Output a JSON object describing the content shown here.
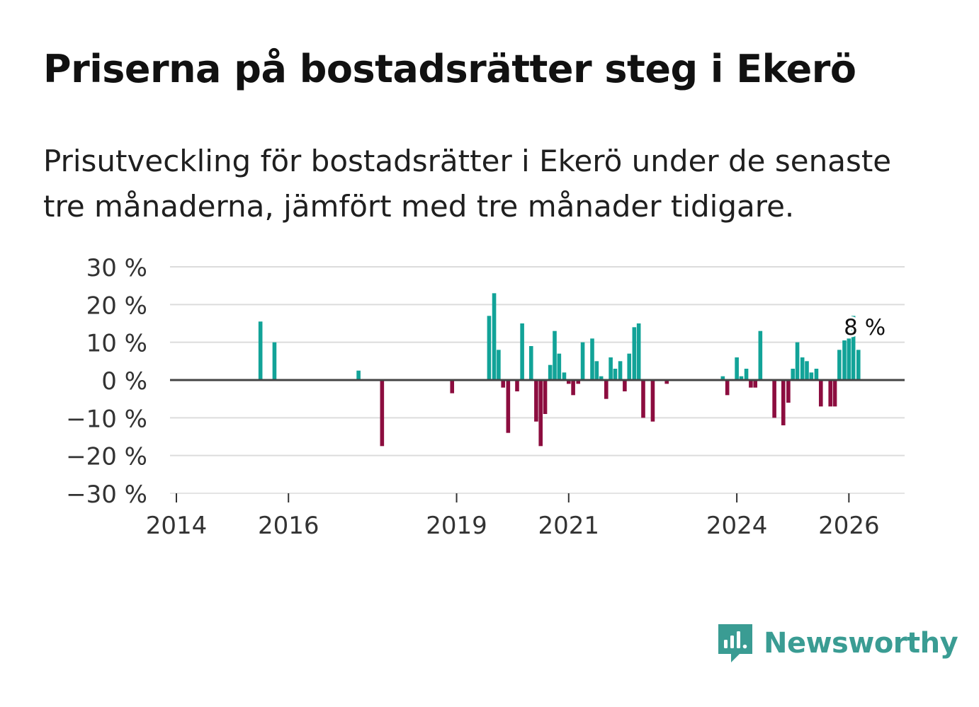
{
  "title": "Priserna på bostadsrätter steg i Ekerö",
  "subtitle": "Prisutveckling för bostadsrätter i Ekerö under de senaste tre månaderna, jämfört med tre månader tidigare.",
  "brand": {
    "name": "Newsworthy",
    "color": "#3a9c93"
  },
  "colors": {
    "positive": "#12a398",
    "negative": "#8c0d3f",
    "grid": "#dcdcdc",
    "zero": "#444444"
  },
  "chart_data": {
    "type": "bar",
    "title": "Priserna på bostadsrätter steg i Ekerö",
    "xlabel": "",
    "ylabel": "",
    "ylim": [
      -30,
      30
    ],
    "xlim": [
      2014.0,
      2026.83
    ],
    "yticks": [
      30,
      20,
      10,
      0,
      -10,
      -20,
      -30
    ],
    "ytick_labels": [
      "30 %",
      "20 %",
      "10 %",
      "0 %",
      "−10 %",
      "−20 %",
      "−30 %"
    ],
    "xticks": [
      2014,
      2016,
      2019,
      2021,
      2024,
      2026
    ],
    "xtick_labels": [
      "2014",
      "2016",
      "2019",
      "2021",
      "2024",
      "2026"
    ],
    "annotation": {
      "text": "8 %",
      "x": 2026.08,
      "y": 8
    },
    "series": [
      {
        "name": "Prisutveckling",
        "x": [
          2015.5,
          2015.75,
          2017.25,
          2017.67,
          2018.92,
          2019.58,
          2019.67,
          2019.75,
          2019.83,
          2019.92,
          2020.08,
          2020.17,
          2020.33,
          2020.42,
          2020.5,
          2020.58,
          2020.67,
          2020.75,
          2020.83,
          2020.92,
          2021.0,
          2021.08,
          2021.17,
          2021.25,
          2021.42,
          2021.5,
          2021.58,
          2021.67,
          2021.75,
          2021.83,
          2021.92,
          2022.0,
          2022.08,
          2022.17,
          2022.25,
          2022.33,
          2022.5,
          2022.75,
          2023.75,
          2023.83,
          2024.0,
          2024.08,
          2024.17,
          2024.25,
          2024.33,
          2024.42,
          2024.67,
          2024.83,
          2024.92,
          2025.0,
          2025.08,
          2025.17,
          2025.25,
          2025.33,
          2025.42,
          2025.5,
          2025.67,
          2025.75,
          2025.83,
          2025.92,
          2026.0,
          2026.08,
          2026.17
        ],
        "values": [
          15.5,
          10,
          2.5,
          -17.5,
          -3.5,
          17,
          23,
          8,
          -2,
          -14,
          -3,
          15,
          9,
          -11,
          -17.5,
          -9,
          4,
          13,
          7,
          2,
          -1,
          -4,
          -1,
          10,
          11,
          5,
          1,
          -5,
          6,
          3,
          5,
          -3,
          7,
          14,
          15,
          -10,
          -11,
          -1,
          1,
          -4,
          6,
          1,
          3,
          -2,
          -2,
          13,
          -10,
          -12,
          -6,
          3,
          10,
          6,
          5,
          2,
          3,
          -7,
          -7,
          -7,
          8,
          10.5,
          11,
          17,
          8
        ]
      }
    ]
  }
}
